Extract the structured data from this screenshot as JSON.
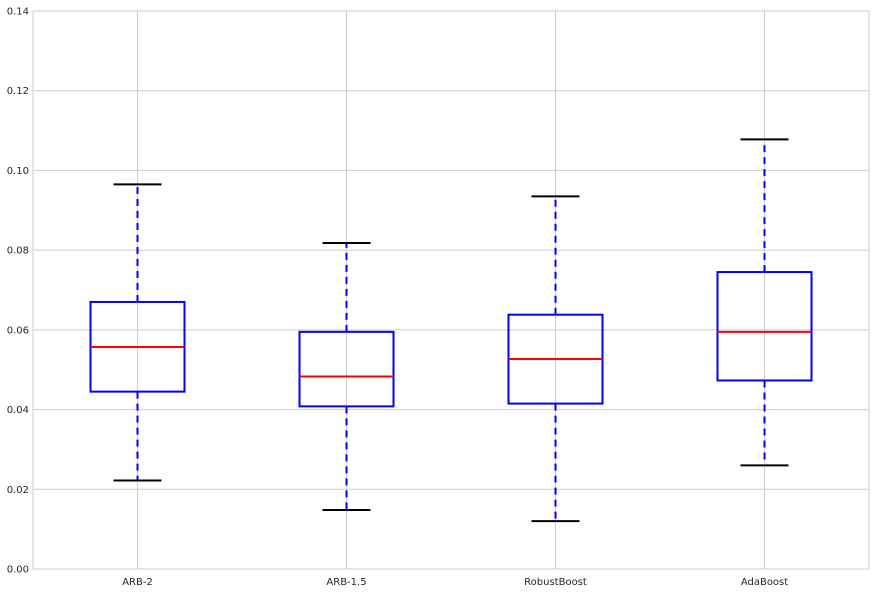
{
  "chart_data": {
    "type": "box",
    "categories": [
      "ARB-2",
      "ARB-1.5",
      "RobustBoost",
      "AdaBoost"
    ],
    "boxes": [
      {
        "category": "ARB-2",
        "whisker_low": 0.0222,
        "q1": 0.0445,
        "median": 0.0557,
        "q3": 0.067,
        "whisker_high": 0.0965
      },
      {
        "category": "ARB-1.5",
        "whisker_low": 0.0148,
        "q1": 0.0408,
        "median": 0.0483,
        "q3": 0.0595,
        "whisker_high": 0.0818
      },
      {
        "category": "RobustBoost",
        "whisker_low": 0.012,
        "q1": 0.0415,
        "median": 0.0527,
        "q3": 0.0638,
        "whisker_high": 0.0935
      },
      {
        "category": "AdaBoost",
        "whisker_low": 0.026,
        "q1": 0.0473,
        "median": 0.0595,
        "q3": 0.0745,
        "whisker_high": 0.1078
      }
    ],
    "ylim": [
      0.0,
      0.14
    ],
    "yticks": [
      "0.00",
      "0.02",
      "0.04",
      "0.06",
      "0.08",
      "0.10",
      "0.12",
      "0.14"
    ],
    "title": "",
    "xlabel": "",
    "ylabel": "",
    "grid": true,
    "colors": {
      "box": "#0000ff",
      "whisker": "#0000ff",
      "median": "#ff0000",
      "cap": "#000000",
      "grid": "#cccccc"
    }
  }
}
